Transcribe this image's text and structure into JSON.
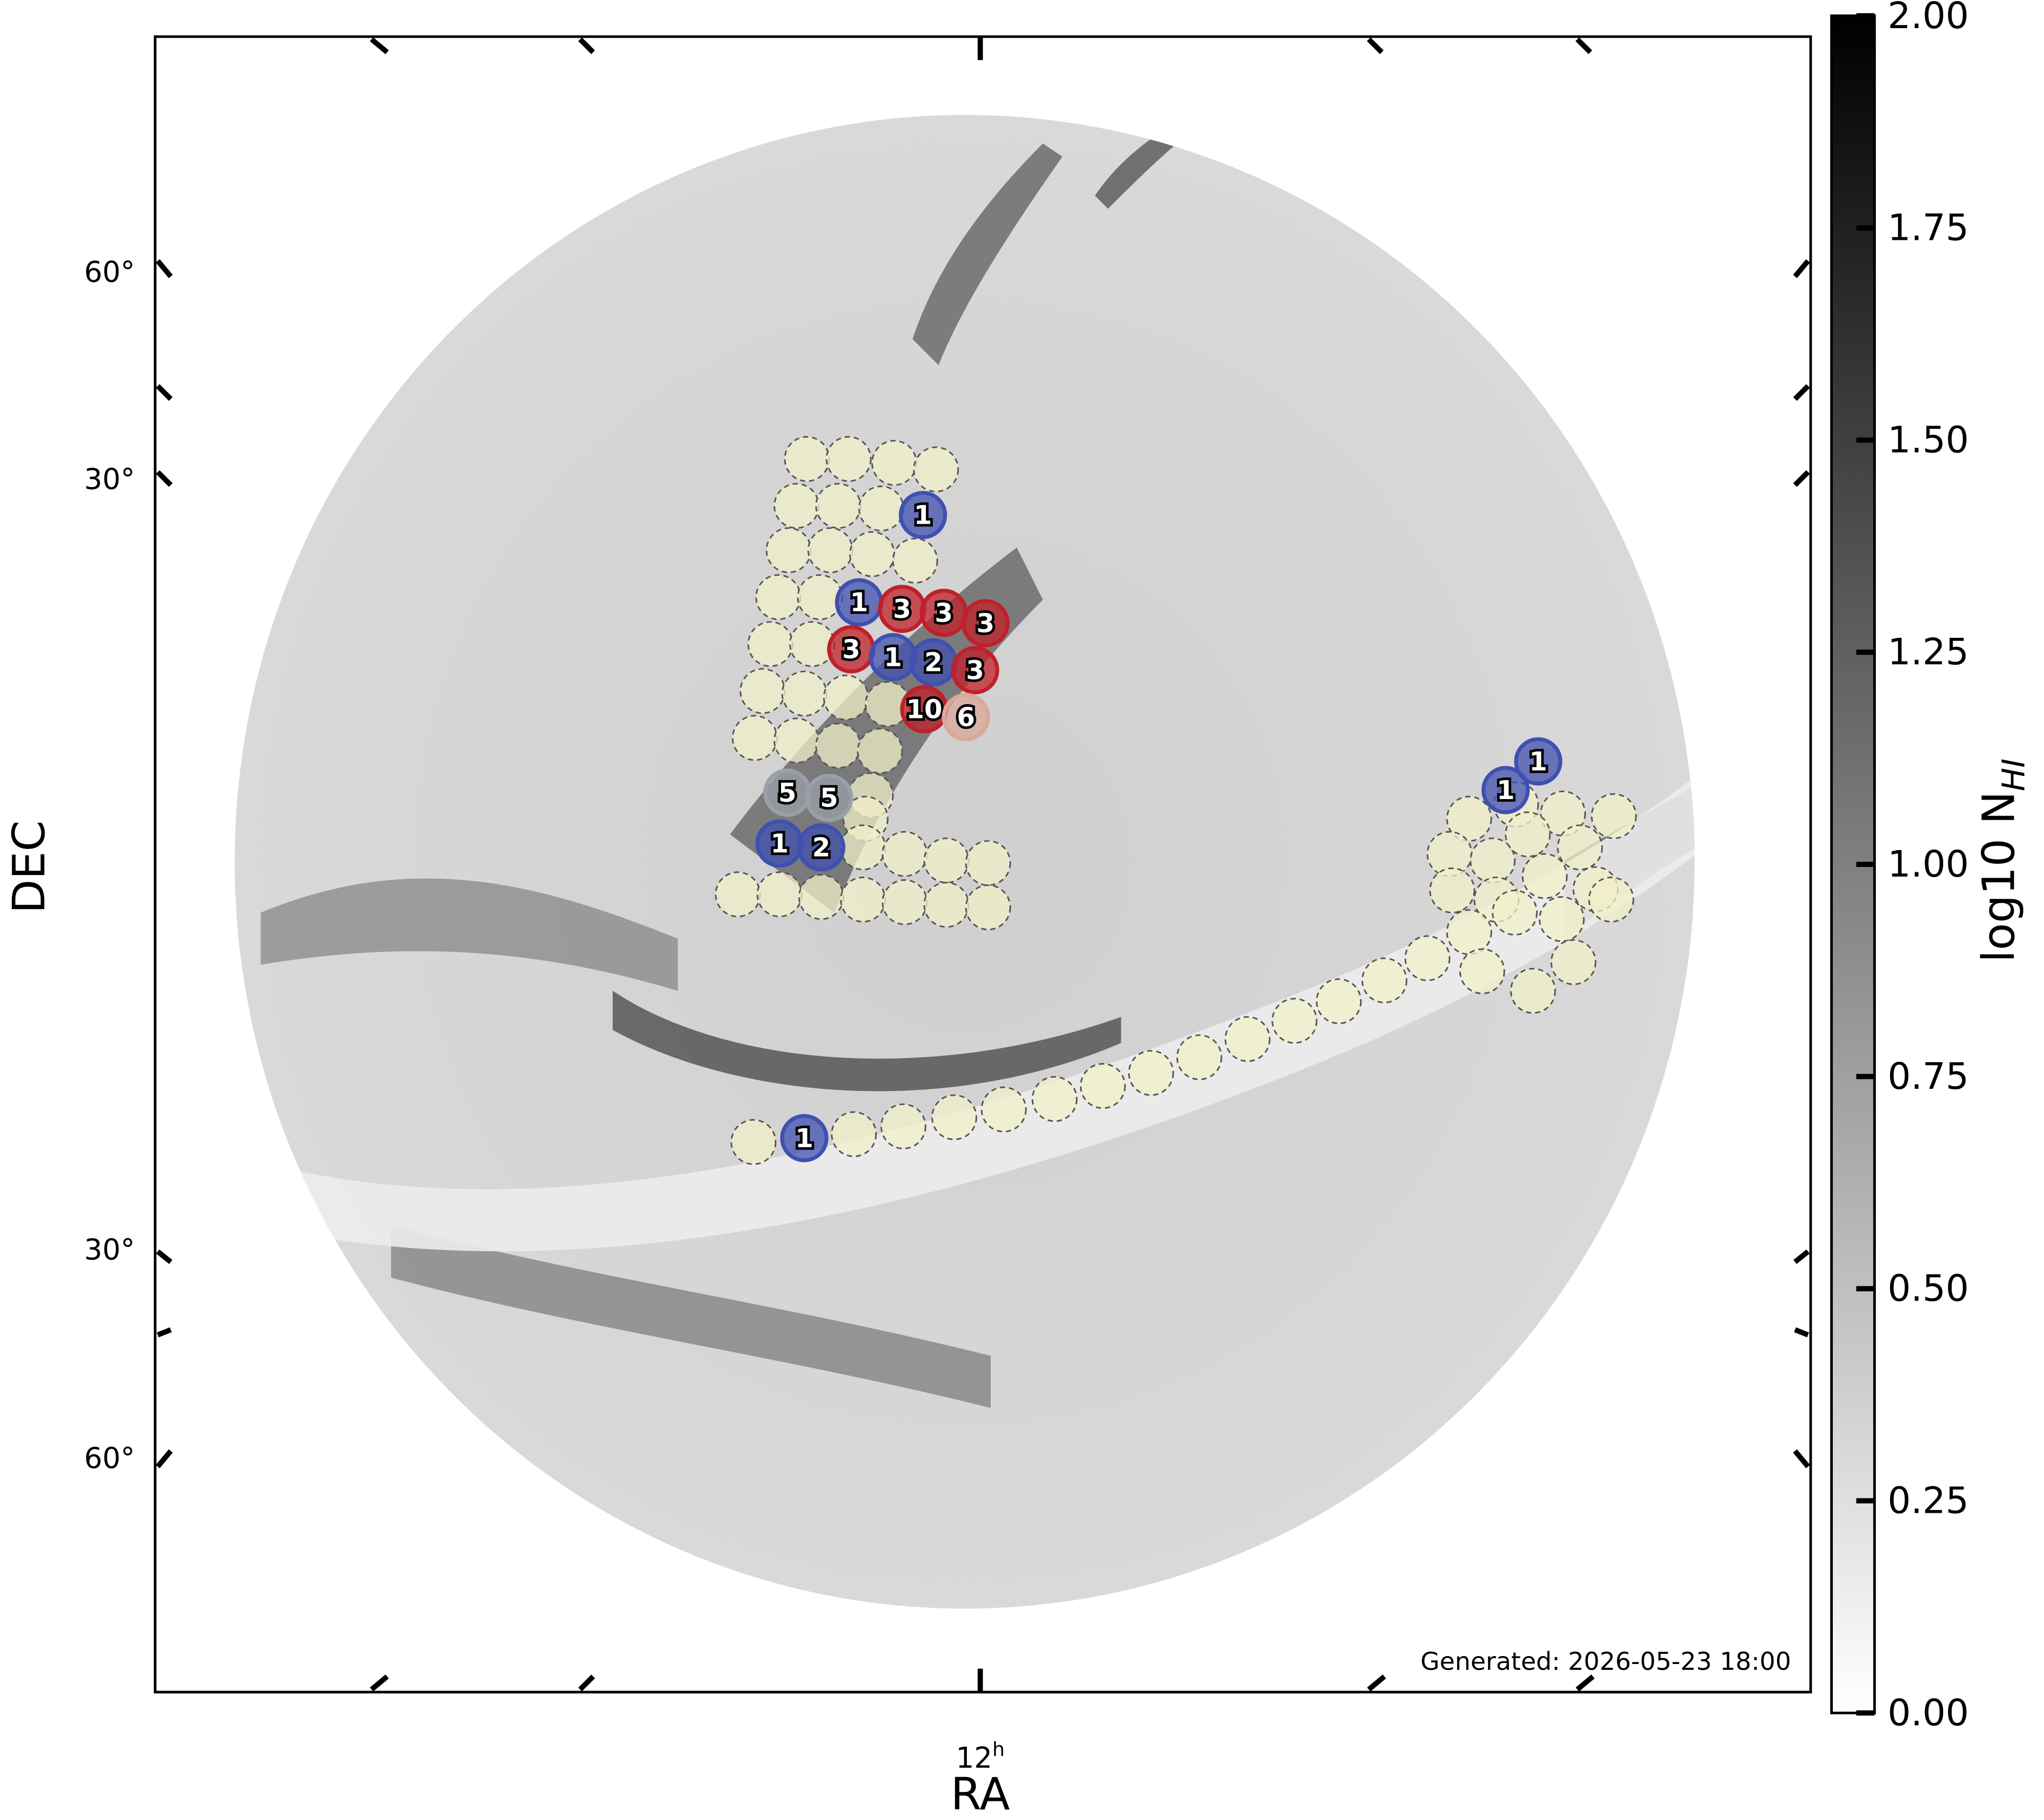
{
  "chart_data": {
    "type": "skymap",
    "xlabel": "RA",
    "ylabel": "DEC",
    "ra_tick": {
      "main": "12",
      "sup": "h"
    },
    "dec_tick_labels": [
      "60°",
      "30°",
      "30°",
      "60°"
    ],
    "note": "Generated: 2026-05-23 18:00",
    "colorbar": {
      "label": "log10 N",
      "label_sub": "HI",
      "lim": [
        0,
        2
      ],
      "ticks": [
        {
          "value": 0,
          "label": "0.00"
        },
        {
          "value": 0.25,
          "label": "0.25"
        },
        {
          "value": 0.5,
          "label": "0.50"
        },
        {
          "value": 0.75,
          "label": "0.75"
        },
        {
          "value": 1,
          "label": "1.00"
        },
        {
          "value": 1.25,
          "label": "1.25"
        },
        {
          "value": 1.5,
          "label": "1.50"
        },
        {
          "value": 1.75,
          "label": "1.75"
        },
        {
          "value": 2,
          "label": "2.00"
        }
      ]
    },
    "markers": {
      "counts": [
        1,
        1,
        3,
        3,
        3,
        3,
        1,
        2,
        3,
        10,
        6,
        5,
        5,
        1,
        2,
        1,
        1,
        1
      ],
      "colors": [
        "#4050b0",
        "#4050b0",
        "#c0202a",
        "#c0202a",
        "#c0202a",
        "#c0202a",
        "#4050b0",
        "#4050b0",
        "#c0202a",
        "#c0202a",
        "#d8a898",
        "#9aa0a8",
        "#9aa0a8",
        "#4050b0",
        "#4050b0",
        "#4050b0",
        "#4050b0",
        "#4050b0"
      ]
    }
  }
}
